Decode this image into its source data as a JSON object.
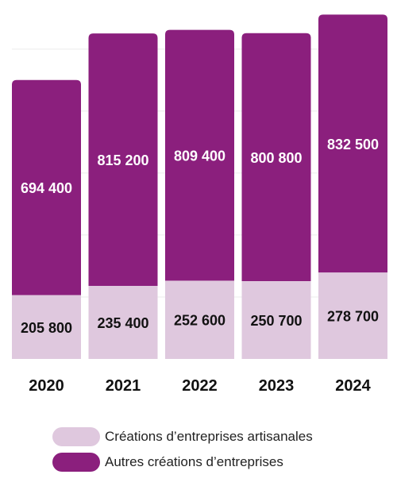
{
  "chart_data": {
    "type": "bar",
    "stacked": true,
    "categories": [
      "2020",
      "2021",
      "2022",
      "2023",
      "2024"
    ],
    "series": [
      {
        "name": "Créations d’entreprises artisanales",
        "values": [
          205800,
          235400,
          252600,
          250700,
          278700
        ],
        "color": "#dfc8de",
        "label_color": "#111111",
        "labels": [
          "205 800",
          "235 400",
          "252 600",
          "250 700",
          "278 700"
        ]
      },
      {
        "name": "Autres créations d’entreprises",
        "values": [
          694400,
          815200,
          809400,
          800800,
          832500
        ],
        "color": "#8b1f7d",
        "label_color": "#ffffff",
        "labels": [
          "694 400",
          "815 200",
          "809 400",
          "800 800",
          "832 500"
        ]
      }
    ],
    "ylim": [
      0,
      1120000
    ],
    "grid": true,
    "legend_position": "bottom"
  }
}
